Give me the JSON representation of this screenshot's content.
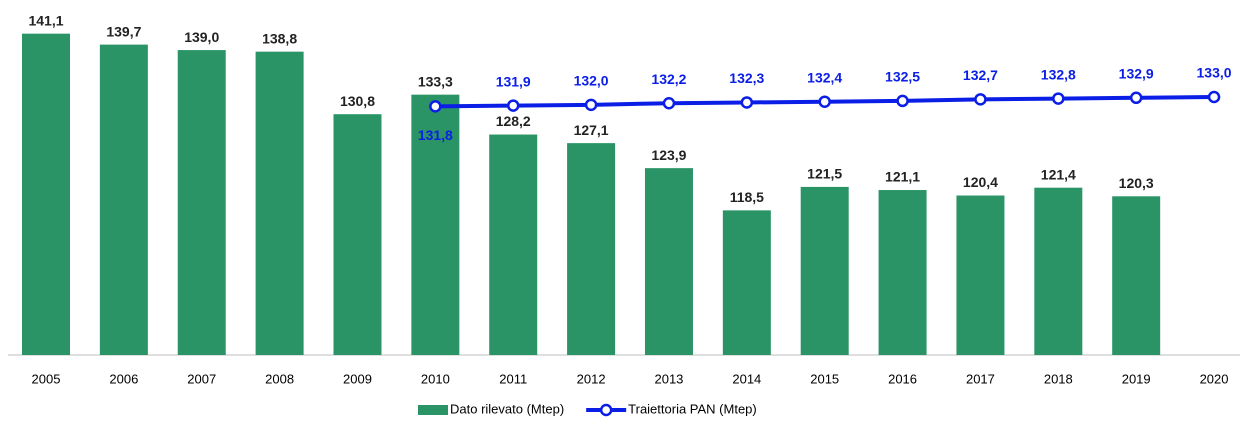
{
  "chart_data": {
    "type": "combo",
    "categories": [
      "2005",
      "2006",
      "2007",
      "2008",
      "2009",
      "2010",
      "2011",
      "2012",
      "2013",
      "2014",
      "2015",
      "2016",
      "2017",
      "2018",
      "2019",
      "2020"
    ],
    "ylim": [
      100,
      144
    ],
    "legend": "bottom",
    "series": [
      {
        "name": "Dato rilevato (Mtep)",
        "type": "bar",
        "color": "#2a9467",
        "values": [
          141.1,
          139.7,
          139.0,
          138.8,
          130.8,
          133.3,
          128.2,
          127.1,
          123.9,
          118.5,
          121.5,
          121.1,
          120.4,
          121.4,
          120.3,
          null
        ],
        "value_labels": [
          "141,1",
          "139,7",
          "139,0",
          "138,8",
          "130,8",
          "133,3",
          "128,2",
          "127,1",
          "123,9",
          "118,5",
          "121,5",
          "121,1",
          "120,4",
          "121,4",
          "120,3",
          null
        ]
      },
      {
        "name": "Traiettoria PAN (Mtep)",
        "type": "line",
        "color": "#0a1ee6",
        "values": [
          null,
          null,
          null,
          null,
          null,
          131.8,
          131.9,
          132.0,
          132.2,
          132.3,
          132.4,
          132.5,
          132.7,
          132.8,
          132.9,
          133.0
        ],
        "value_labels": [
          null,
          null,
          null,
          null,
          null,
          "131,8",
          "131,9",
          "132,0",
          "132,2",
          "132,3",
          "132,4",
          "132,5",
          "132,7",
          "132,8",
          "132,9",
          "133,0"
        ]
      }
    ]
  }
}
